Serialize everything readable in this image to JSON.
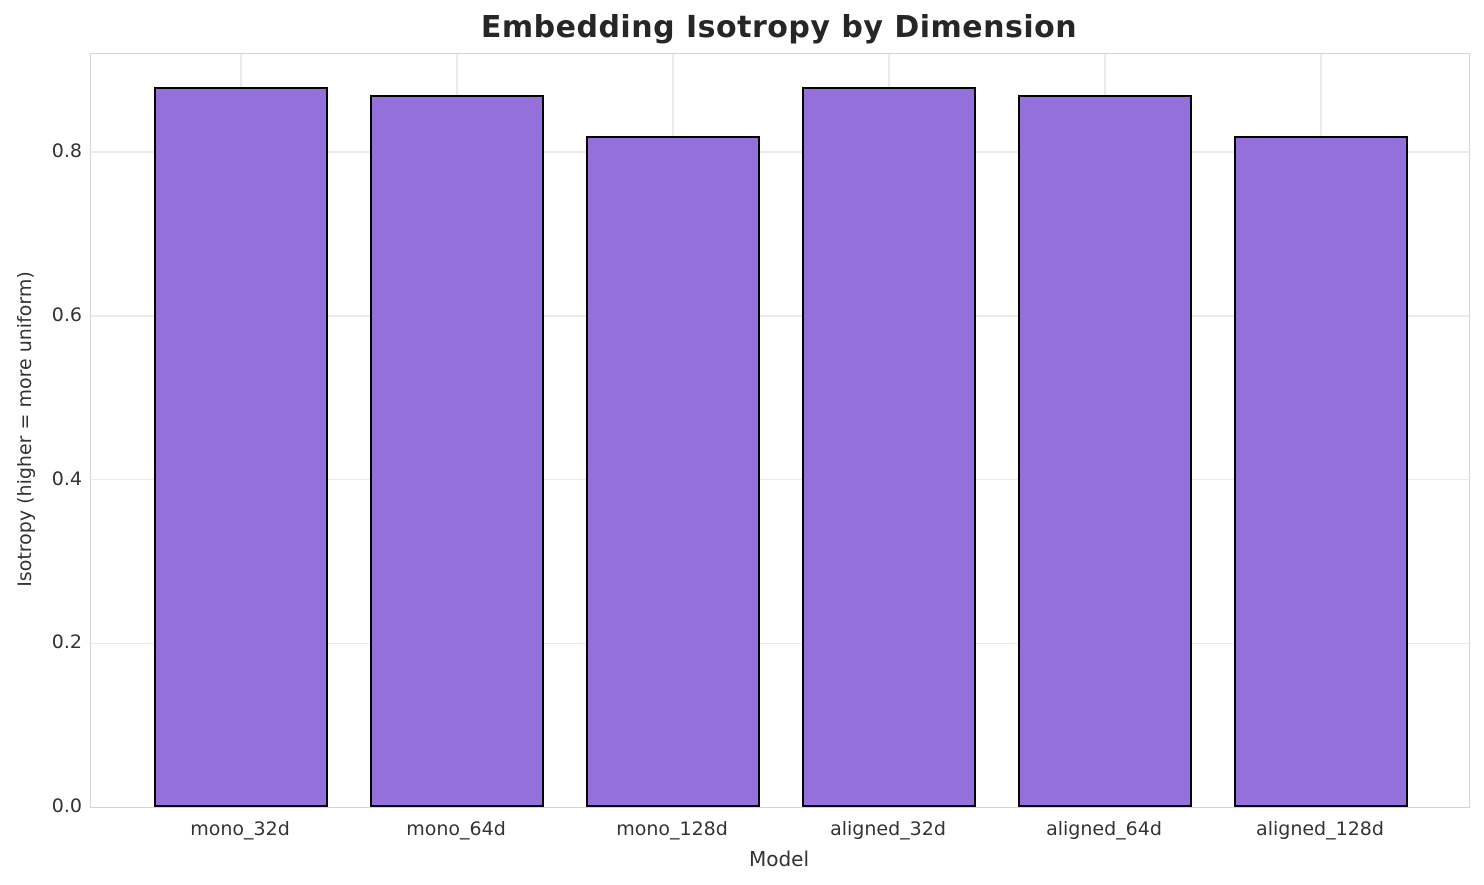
{
  "chart_data": {
    "type": "bar",
    "title": "Embedding Isotropy by Dimension",
    "xlabel": "Model",
    "ylabel": "Isotropy (higher = more uniform)",
    "categories": [
      "mono_32d",
      "mono_64d",
      "mono_128d",
      "aligned_32d",
      "aligned_64d",
      "aligned_128d"
    ],
    "values": [
      0.88,
      0.87,
      0.82,
      0.88,
      0.87,
      0.82
    ],
    "ylim": [
      0,
      0.92
    ],
    "yticks": [
      0.0,
      0.2,
      0.4,
      0.6,
      0.8
    ],
    "ytick_labels": [
      "0.0",
      "0.2",
      "0.4",
      "0.6",
      "0.8"
    ],
    "grid": true,
    "legend": false,
    "colors": {
      "bar_fill": "#9370DB",
      "bar_edge": "#000000",
      "gridline": "#ebebeb",
      "spine": "#d4d4d4",
      "text": "#333333",
      "title_text": "#262626",
      "background": "#ffffff"
    }
  }
}
